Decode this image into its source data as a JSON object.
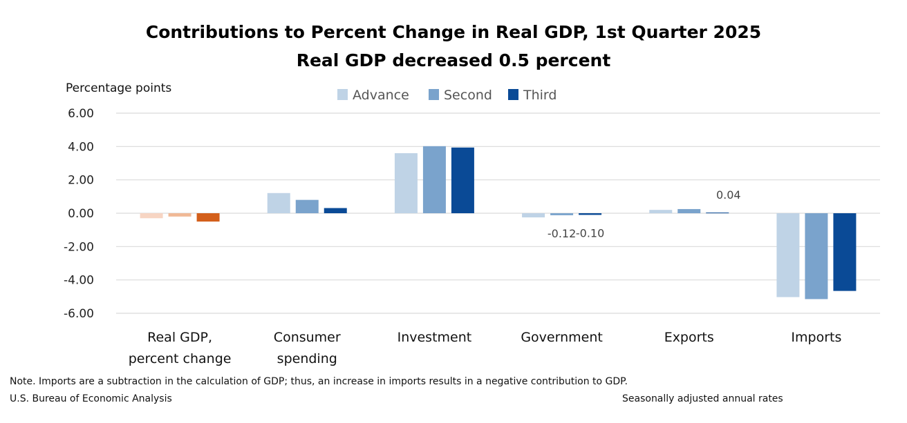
{
  "chart_data": {
    "type": "bar",
    "title": "Contributions to Percent Change in Real GDP, 1st Quarter 2025",
    "subtitle": "Real GDP decreased 0.5 percent",
    "ylabel": "Percentage points",
    "ylim": [
      -6,
      6
    ],
    "yticks": [
      "6.00",
      "4.00",
      "2.00",
      "0.00",
      "-2.00",
      "-4.00",
      "-6.00"
    ],
    "grid": true,
    "legend_position": "top-center",
    "categories": [
      [
        "Real GDP,",
        "percent change"
      ],
      [
        "Consumer",
        "spending"
      ],
      [
        "Investment"
      ],
      [
        "Government"
      ],
      [
        "Exports"
      ],
      [
        "Imports"
      ]
    ],
    "series": [
      {
        "name": "Advance",
        "color": "#bfd3e6",
        "values": [
          -0.3,
          1.21,
          3.6,
          -0.25,
          0.2,
          -5.03
        ]
      },
      {
        "name": "Second",
        "color": "#7aa3cc",
        "values": [
          -0.2,
          0.8,
          4.02,
          -0.12,
          0.25,
          -5.15
        ]
      },
      {
        "name": "Third",
        "color": "#0a4a96",
        "values": [
          -0.5,
          0.31,
          3.94,
          -0.1,
          0.04,
          -4.66
        ]
      }
    ],
    "real_gdp_colors": [
      "#f7d5c3",
      "#f0b996",
      "#d35f1b"
    ],
    "data_labels": [
      {
        "category": 3,
        "series": 1,
        "text": "-0.12"
      },
      {
        "category": 3,
        "series": 2,
        "text": "-0.10"
      },
      {
        "category": 4,
        "series": 2,
        "text": "0.04"
      }
    ]
  },
  "note": "Note. Imports are a subtraction in the calculation of GDP; thus, an increase in imports results in a negative contribution to GDP.",
  "source": "U.S. Bureau of Economic Analysis",
  "rates_note": "Seasonally adjusted annual rates"
}
